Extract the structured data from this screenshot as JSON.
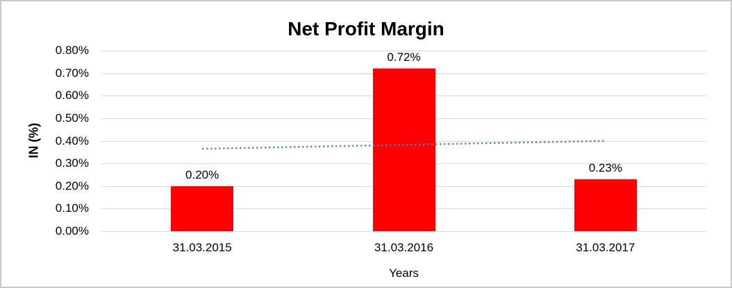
{
  "frame": {
    "background_color": "#ffffff",
    "border_color": "#c9c9c9"
  },
  "chart_data": {
    "type": "bar",
    "title": "Net Profit Margin",
    "xlabel": "Years",
    "ylabel": "IN (%)",
    "categories": [
      "31.03.2015",
      "31.03.2016",
      "31.03.2017"
    ],
    "values": [
      0.2,
      0.72,
      0.23
    ],
    "data_labels": [
      "0.20%",
      "0.72%",
      "0.23%"
    ],
    "y_ticks": [
      "0.80%",
      "0.70%",
      "0.60%",
      "0.50%",
      "0.40%",
      "0.30%",
      "0.20%",
      "0.10%",
      "0.00%"
    ],
    "ylim": [
      0,
      0.8
    ],
    "y_tick_step": 0.1,
    "grid": true,
    "legend": "none",
    "bar_color": "#ff0000",
    "gridline_color": "#d9d9d9",
    "text_color": "#000000",
    "trendline": {
      "type": "linear",
      "style": "dotted",
      "color": "#4e81bd",
      "start_value": 0.365,
      "end_value": 0.4
    }
  }
}
